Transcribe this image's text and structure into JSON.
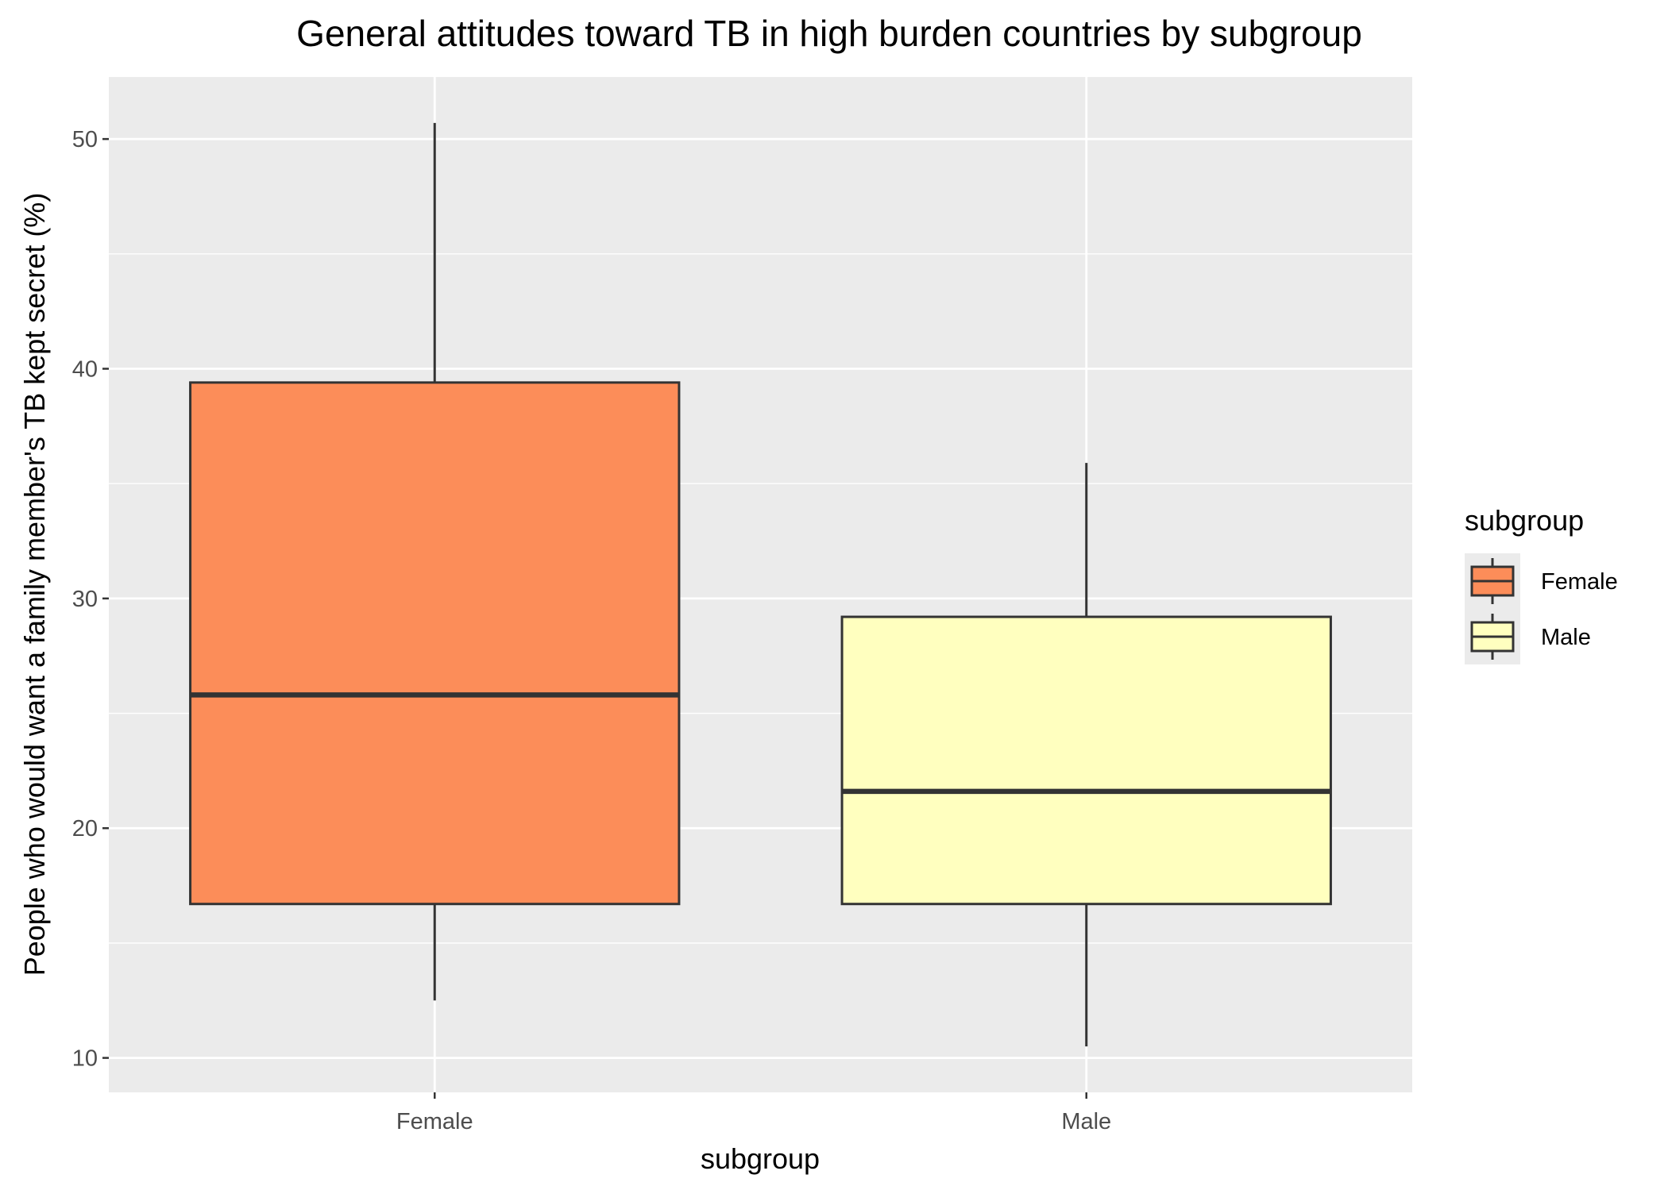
{
  "chart_data": {
    "type": "box",
    "title": "General attitudes toward TB in high burden countries by subgroup",
    "xlabel": "subgroup",
    "ylabel": "People who would want a family member's TB kept secret (%)",
    "categories": [
      "Female",
      "Male"
    ],
    "yticks": [
      10,
      20,
      30,
      40,
      50
    ],
    "ylim": [
      8.5,
      52.7
    ],
    "grid": true,
    "legend": {
      "title": "subgroup",
      "position": "right",
      "entries": [
        "Female",
        "Male"
      ]
    },
    "series": [
      {
        "category": "Female",
        "color": "#fc8d59",
        "min": 12.5,
        "q1": 16.7,
        "median": 25.8,
        "q3": 39.4,
        "max": 50.7
      },
      {
        "category": "Male",
        "color": "#ffffbf",
        "min": 10.5,
        "q1": 16.7,
        "median": 21.6,
        "q3": 29.2,
        "max": 35.9
      }
    ],
    "panel_color": "#ebebeb",
    "outline_color": "#333333"
  }
}
